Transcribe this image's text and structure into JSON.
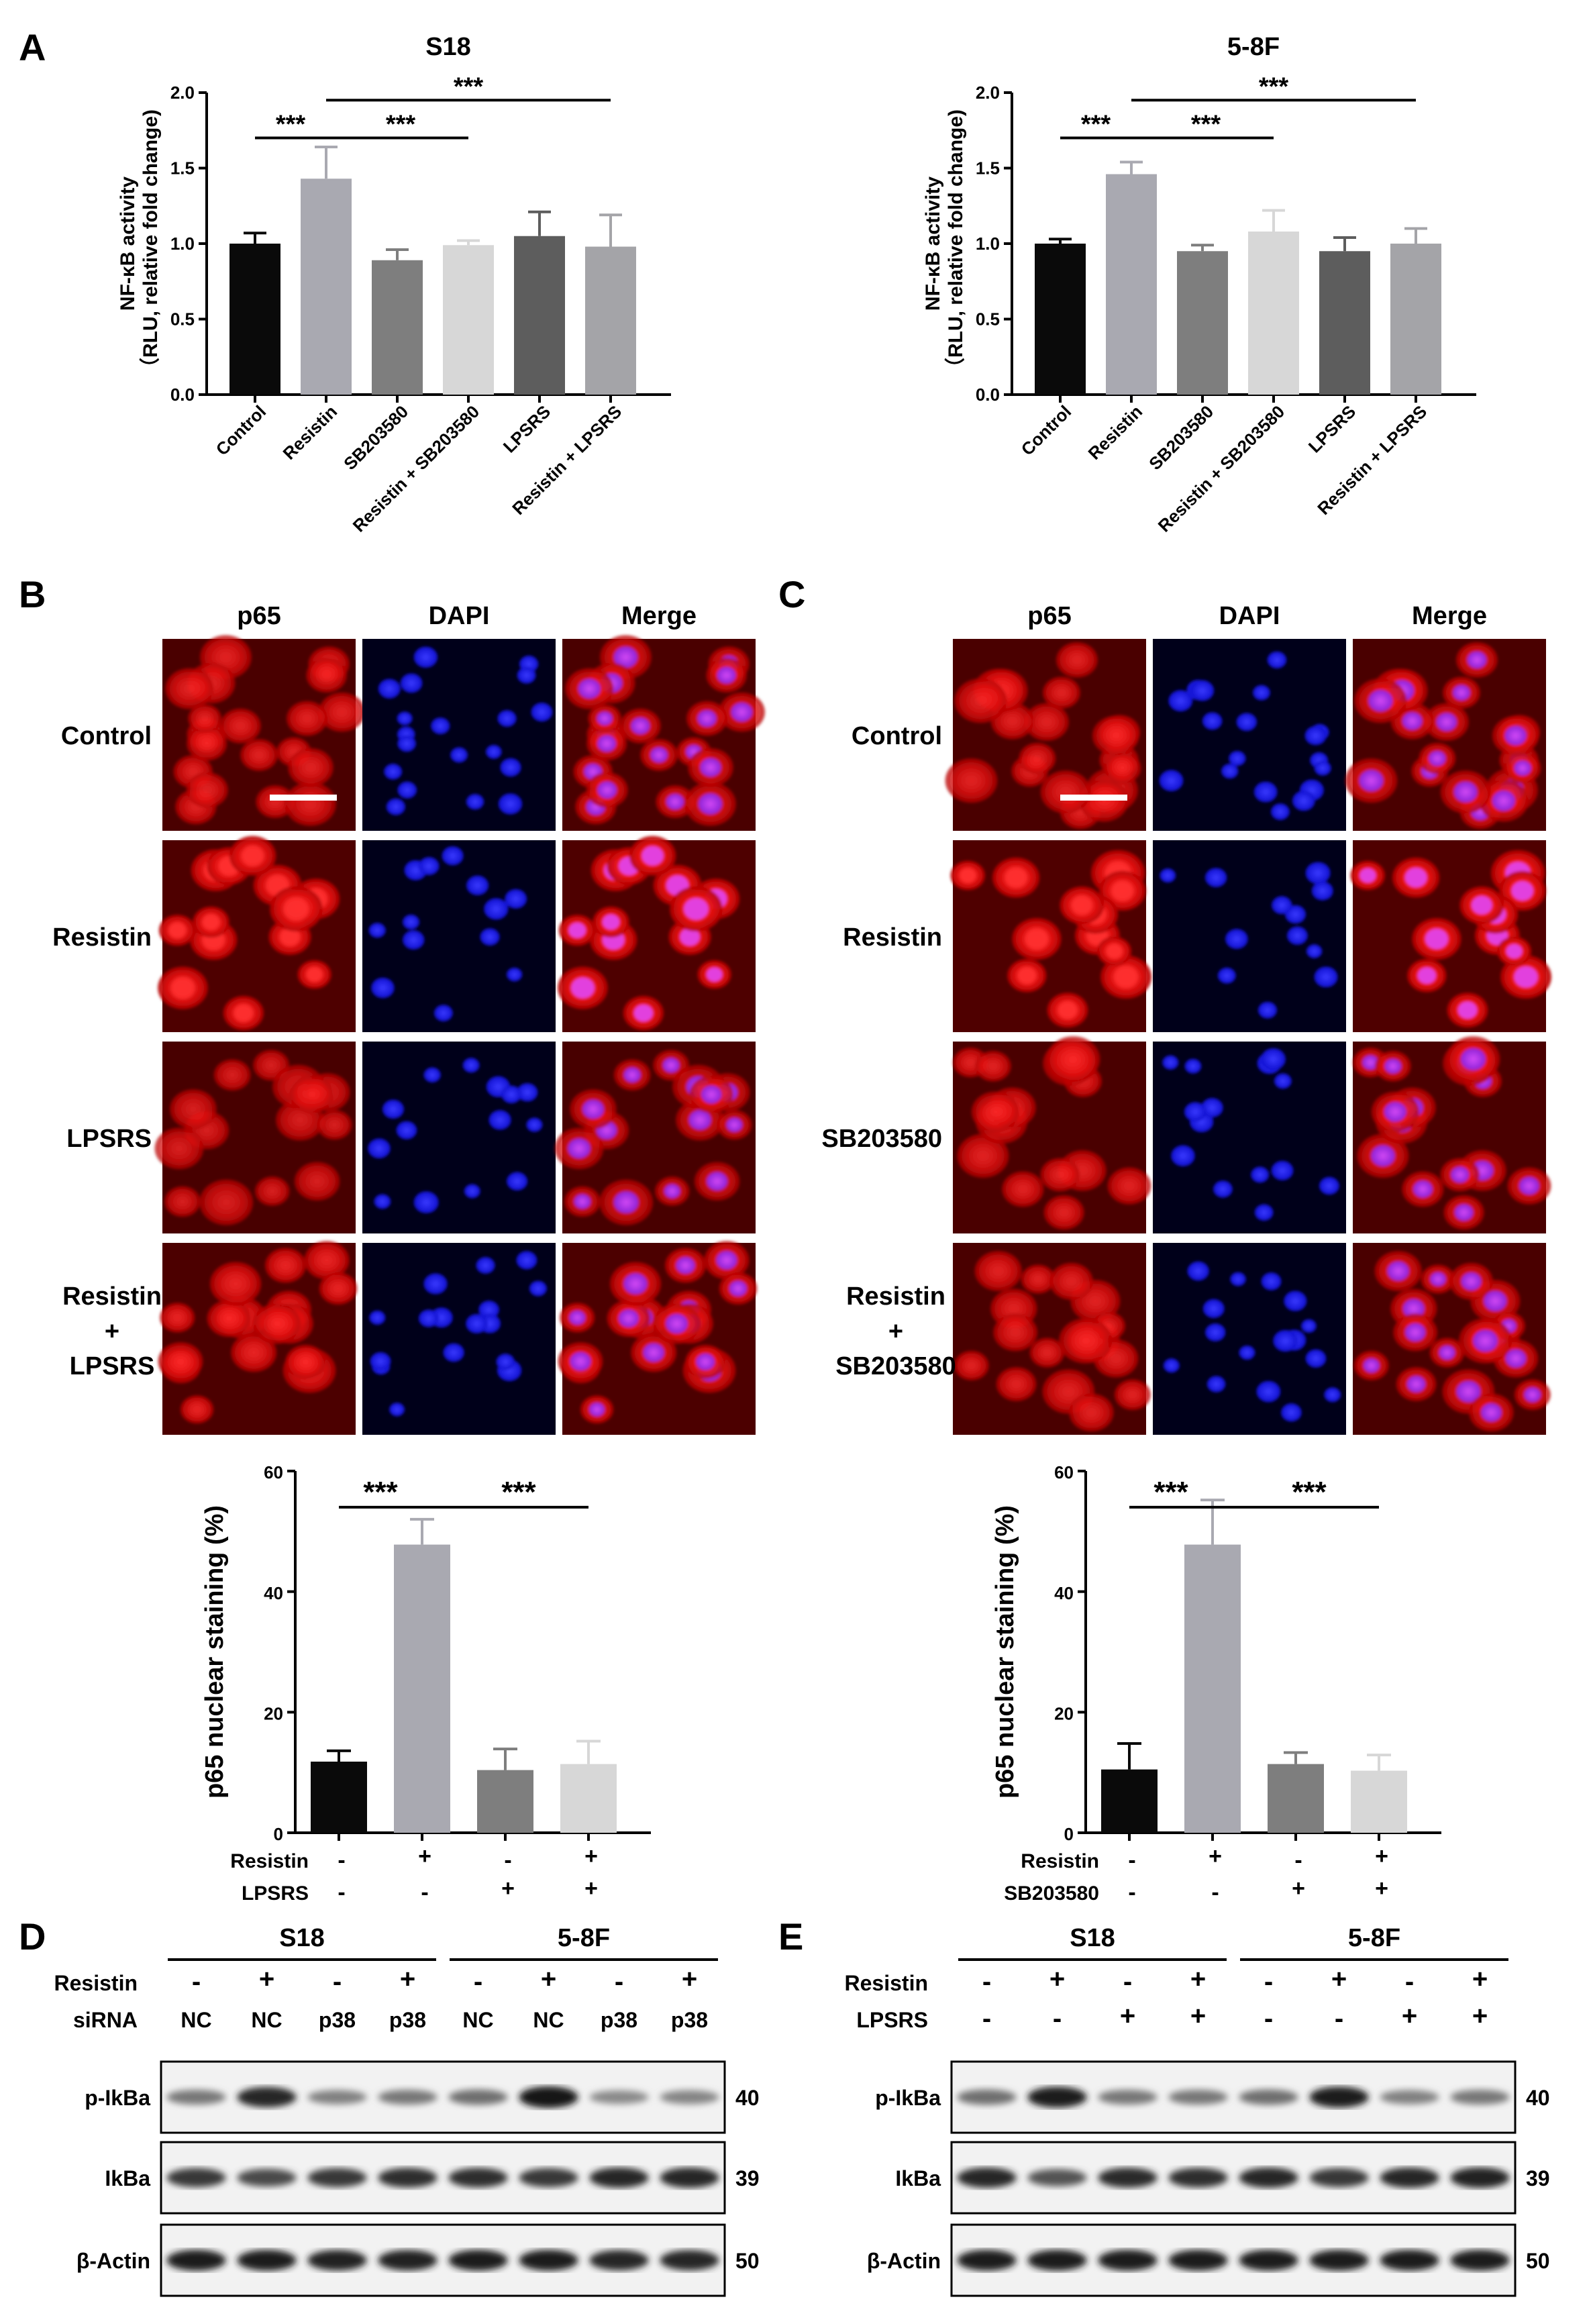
{
  "panels": {
    "A": "A",
    "B": "B",
    "C": "C",
    "D": "D",
    "E": "E"
  },
  "panelA": [
    {
      "chart_data": {
        "type": "bar",
        "title": "S18",
        "ylabel_line1": "NF-κB activity",
        "ylabel_line2": "（RLU, relative fold change)",
        "categories": [
          "Control",
          "Resistin",
          "SB203580",
          "Resistin + SB203580",
          "LPSRS",
          "Resistin + LPSRS"
        ],
        "values": [
          1.0,
          1.43,
          0.89,
          0.99,
          1.05,
          0.98
        ],
        "errors": [
          0.07,
          0.21,
          0.07,
          0.03,
          0.16,
          0.21
        ],
        "colors": [
          "#0a0a0a",
          "#a9a9b1",
          "#7e7e7e",
          "#d7d7d7",
          "#5d5d5d",
          "#a4a4a8"
        ],
        "ylim": [
          0,
          2.0
        ],
        "yticks": [
          "0.0",
          "0.5",
          "1.0",
          "1.5",
          "2.0"
        ],
        "significance": [
          "***",
          "***",
          "***"
        ]
      }
    },
    {
      "chart_data": {
        "type": "bar",
        "title": "5-8F",
        "ylabel_line1": "NF-κB activity",
        "ylabel_line2": "（RLU, relative fold change)",
        "categories": [
          "Control",
          "Resistin",
          "SB203580",
          "Resistin + SB203580",
          "LPSRS",
          "Resistin + LPSRS"
        ],
        "values": [
          1.0,
          1.46,
          0.95,
          1.08,
          0.95,
          1.0
        ],
        "errors": [
          0.03,
          0.08,
          0.04,
          0.14,
          0.09,
          0.1
        ],
        "colors": [
          "#0a0a0a",
          "#a9a9b1",
          "#7e7e7e",
          "#d7d7d7",
          "#5d5d5d",
          "#a4a4a8"
        ],
        "ylim": [
          0,
          2.0
        ],
        "yticks": [
          "0.0",
          "0.5",
          "1.0",
          "1.5",
          "2.0"
        ],
        "significance": [
          "***",
          "***",
          "***"
        ]
      }
    }
  ],
  "panelB": {
    "columns": [
      "p65",
      "DAPI",
      "Merge"
    ],
    "rows": [
      "Control",
      "Resistin",
      "LPSRS"
    ],
    "row4": [
      "Resistin",
      "+",
      "LPSRS"
    ],
    "chart_data": {
      "type": "bar",
      "ylabel": "p65 nuclear staining (%)",
      "values": [
        11.8,
        47.8,
        10.4,
        11.4
      ],
      "errors": [
        1.8,
        4.2,
        3.5,
        3.8
      ],
      "colors": [
        "#0a0a0a",
        "#a9a9b1",
        "#7e7e7e",
        "#d7d7d7"
      ],
      "ylim": [
        0,
        60
      ],
      "yticks": [
        "0",
        "20",
        "40",
        "60"
      ],
      "significance": [
        "***",
        "***"
      ],
      "treatments": [
        {
          "name": "Resistin",
          "signs": [
            "-",
            "+",
            "-",
            "+"
          ]
        },
        {
          "name": "LPSRS",
          "signs": [
            "-",
            "-",
            "+",
            "+"
          ]
        }
      ]
    }
  },
  "panelC": {
    "columns": [
      "p65",
      "DAPI",
      "Merge"
    ],
    "rows": [
      "Control",
      "Resistin",
      "SB203580"
    ],
    "row4": [
      "Resistin",
      "+",
      "SB203580"
    ],
    "chart_data": {
      "type": "bar",
      "ylabel": "p65 nuclear staining (%)",
      "values": [
        10.5,
        47.8,
        11.4,
        10.3
      ],
      "errors": [
        4.3,
        7.4,
        1.9,
        2.6
      ],
      "colors": [
        "#0a0a0a",
        "#a9a9b1",
        "#7e7e7e",
        "#d7d7d7"
      ],
      "ylim": [
        0,
        60
      ],
      "yticks": [
        "0",
        "20",
        "40",
        "60"
      ],
      "significance": [
        "***",
        "***"
      ],
      "treatments": [
        {
          "name": "Resistin",
          "signs": [
            "-",
            "+",
            "-",
            "+"
          ]
        },
        {
          "name": "SB203580",
          "signs": [
            "-",
            "-",
            "+",
            "+"
          ]
        }
      ]
    }
  },
  "panelD": {
    "groups": [
      "S18",
      "5-8F"
    ],
    "rows": [
      {
        "name": "Resistin",
        "values": [
          "-",
          "+",
          "-",
          "+",
          "-",
          "+",
          "-",
          "+"
        ]
      },
      {
        "name": "siRNA",
        "values": [
          "NC",
          "NC",
          "p38",
          "p38",
          "NC",
          "NC",
          "p38",
          "p38"
        ]
      }
    ],
    "blots": [
      {
        "name": "p-IkBa",
        "mw": "40",
        "intensity": [
          0.45,
          0.9,
          0.4,
          0.45,
          0.5,
          1.0,
          0.35,
          0.38
        ]
      },
      {
        "name": "IkBa",
        "mw": "39",
        "intensity": [
          0.8,
          0.7,
          0.8,
          0.85,
          0.85,
          0.8,
          0.9,
          0.9
        ]
      },
      {
        "name": "β-Actin",
        "mw": "50",
        "intensity": [
          0.95,
          0.95,
          0.92,
          0.92,
          0.95,
          0.95,
          0.9,
          0.9
        ]
      }
    ]
  },
  "panelE": {
    "groups": [
      "S18",
      "5-8F"
    ],
    "rows": [
      {
        "name": "Resistin",
        "values": [
          "-",
          "+",
          "-",
          "+",
          "-",
          "+",
          "-",
          "+"
        ]
      },
      {
        "name": "LPSRS",
        "values": [
          "-",
          "-",
          "+",
          "+",
          "-",
          "-",
          "+",
          "+"
        ]
      }
    ],
    "blots": [
      {
        "name": "p-IkBa",
        "mw": "40",
        "intensity": [
          0.5,
          0.95,
          0.45,
          0.45,
          0.5,
          0.95,
          0.4,
          0.45
        ]
      },
      {
        "name": "IkBa",
        "mw": "39",
        "intensity": [
          0.9,
          0.65,
          0.88,
          0.85,
          0.9,
          0.8,
          0.9,
          0.92
        ]
      },
      {
        "name": "β-Actin",
        "mw": "50",
        "intensity": [
          0.95,
          0.95,
          0.95,
          0.95,
          0.95,
          0.95,
          0.95,
          0.95
        ]
      }
    ]
  },
  "scale_bars": {
    "B": "scale-bar",
    "C": "scale-bar"
  }
}
